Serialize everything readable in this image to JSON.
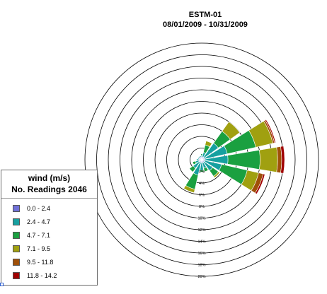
{
  "chart_data": {
    "type": "windrose",
    "title": "ESTM-01",
    "subtitle": "08/01/2009 - 10/31/2009",
    "legend": {
      "title": "wind (m/s)",
      "subtitle": "No. Readings 2046",
      "entries": [
        {
          "label": "0.0 - 2.4",
          "color": "#7070d8"
        },
        {
          "label": "2.4 - 4.7",
          "color": "#16a0a0"
        },
        {
          "label": "4.7 - 7.1",
          "color": "#1aa040"
        },
        {
          "label": "7.1 - 9.5",
          "color": "#a0a010"
        },
        {
          "label": "9.5 - 11.8",
          "color": "#a05008"
        },
        {
          "label": "11.8 - 14.2",
          "color": "#a00000"
        }
      ]
    },
    "radial_ticks": [
      "2%",
      "4%",
      "6%",
      "8%",
      "10%",
      "12%",
      "14%",
      "16%",
      "18%",
      "20%"
    ],
    "radial_max": 20,
    "sectors": [
      {
        "angle": 0,
        "values": [
          0.5,
          0.3,
          0.2,
          0.0,
          0.0,
          0.0
        ]
      },
      {
        "angle": 22.5,
        "values": [
          0.5,
          0.8,
          1.3,
          0.7,
          0.0,
          0.0
        ]
      },
      {
        "angle": 45,
        "values": [
          0.5,
          3.0,
          2.5,
          2.0,
          0.0,
          0.0
        ]
      },
      {
        "angle": 67.5,
        "values": [
          0.5,
          4.0,
          5.0,
          3.0,
          0.3,
          0.2
        ]
      },
      {
        "angle": 90,
        "values": [
          0.5,
          4.0,
          5.5,
          3.0,
          0.7,
          0.5
        ]
      },
      {
        "angle": 112.5,
        "values": [
          0.5,
          3.0,
          4.5,
          2.0,
          0.8,
          0.3
        ]
      },
      {
        "angle": 135,
        "values": [
          0.5,
          1.8,
          1.2,
          0.3,
          0.0,
          0.0
        ]
      },
      {
        "angle": 157.5,
        "values": [
          0.5,
          1.0,
          0.6,
          0.0,
          0.0,
          0.0
        ]
      },
      {
        "angle": 180,
        "values": [
          0.5,
          1.3,
          0.3,
          0.0,
          0.0,
          0.0
        ]
      },
      {
        "angle": 202.5,
        "values": [
          0.5,
          2.2,
          2.5,
          0.6,
          0.0,
          0.0
        ]
      },
      {
        "angle": 225,
        "values": [
          0.5,
          1.3,
          0.8,
          0.0,
          0.0,
          0.0
        ]
      },
      {
        "angle": 247.5,
        "values": [
          0.5,
          0.6,
          0.5,
          0.0,
          0.0,
          0.0
        ]
      },
      {
        "angle": 270,
        "values": [
          0.5,
          0.4,
          0.0,
          0.0,
          0.0,
          0.0
        ]
      },
      {
        "angle": 292.5,
        "values": [
          0.5,
          0.2,
          0.0,
          0.0,
          0.0,
          0.0
        ]
      },
      {
        "angle": 315,
        "values": [
          0.5,
          0.2,
          0.0,
          0.0,
          0.0,
          0.0
        ]
      },
      {
        "angle": 337.5,
        "values": [
          0.5,
          0.2,
          0.0,
          0.0,
          0.0,
          0.0
        ]
      }
    ]
  }
}
